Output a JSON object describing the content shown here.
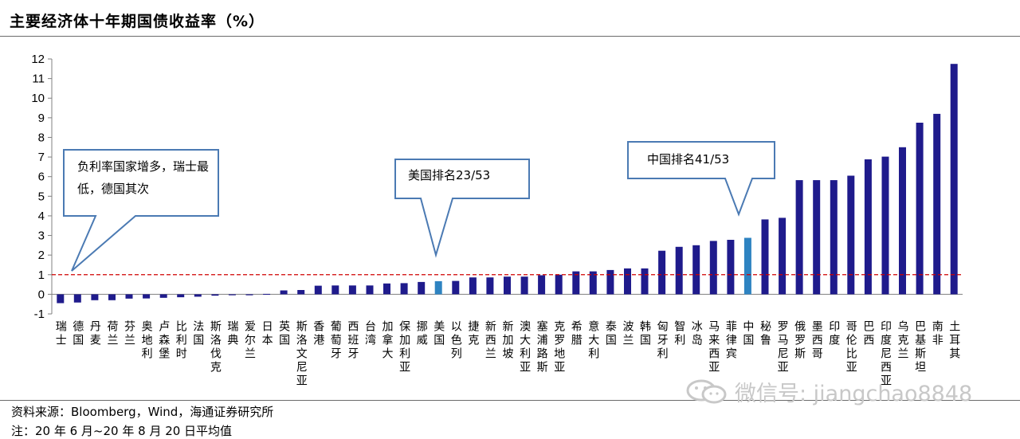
{
  "title": "主要经济体十年期国债收益率（%）",
  "source": "资料来源：Bloomberg，Wind，海通证券研究所",
  "note": "注：20 年 6 月~20 年 8 月 20 日平均值",
  "watermark": "微信号: jiangchao8848",
  "colors": {
    "bar": "#1f1b8c",
    "highlight": "#2e83c1",
    "reference_line": "#d00000",
    "callout_border": "#4b7ab3"
  },
  "chart_data": {
    "type": "bar",
    "ylim": [
      -1,
      12
    ],
    "yticks": [
      -1,
      0,
      1,
      2,
      3,
      4,
      5,
      6,
      7,
      8,
      9,
      10,
      11,
      12
    ],
    "reference_line": 1,
    "categories": [
      "瑞士",
      "德国",
      "丹麦",
      "荷兰",
      "芬兰",
      "奥地利",
      "卢森堡",
      "比利时",
      "法国",
      "斯洛伐克",
      "瑞典",
      "爱尔兰",
      "日本",
      "英国",
      "斯洛文尼亚",
      "香港",
      "葡萄牙",
      "西班牙",
      "台湾",
      "加拿大",
      "保加利亚",
      "挪威",
      "美国",
      "以色列",
      "捷克",
      "新西兰",
      "新加坡",
      "澳大利亚",
      "塞浦路斯",
      "克罗地亚",
      "希腊",
      "意大利",
      "泰国",
      "波兰",
      "韩国",
      "匈牙利",
      "智利",
      "冰岛",
      "马来西亚",
      "菲律宾",
      "中国",
      "秘鲁",
      "罗马尼亚",
      "俄罗斯",
      "墨西哥",
      "印度",
      "哥伦比亚",
      "巴西",
      "印度尼西亚",
      "乌克兰",
      "巴基斯坦",
      "南非",
      "土耳其"
    ],
    "values": [
      -0.45,
      -0.42,
      -0.3,
      -0.3,
      -0.22,
      -0.21,
      -0.18,
      -0.15,
      -0.12,
      -0.07,
      -0.05,
      -0.05,
      0.02,
      0.2,
      0.22,
      0.44,
      0.45,
      0.45,
      0.45,
      0.55,
      0.57,
      0.63,
      0.67,
      0.68,
      0.86,
      0.86,
      0.9,
      0.9,
      0.97,
      1.0,
      1.17,
      1.17,
      1.24,
      1.32,
      1.32,
      2.22,
      2.42,
      2.5,
      2.72,
      2.78,
      2.88,
      3.82,
      3.9,
      5.82,
      5.82,
      5.82,
      6.05,
      6.88,
      7.02,
      7.5,
      8.75,
      9.2,
      11.75
    ],
    "highlight": [
      "美国",
      "中国"
    ],
    "annotations": [
      "负利率国家增多，瑞士最低，德国其次",
      "美国排名23/53",
      "中国排名41/53"
    ]
  }
}
